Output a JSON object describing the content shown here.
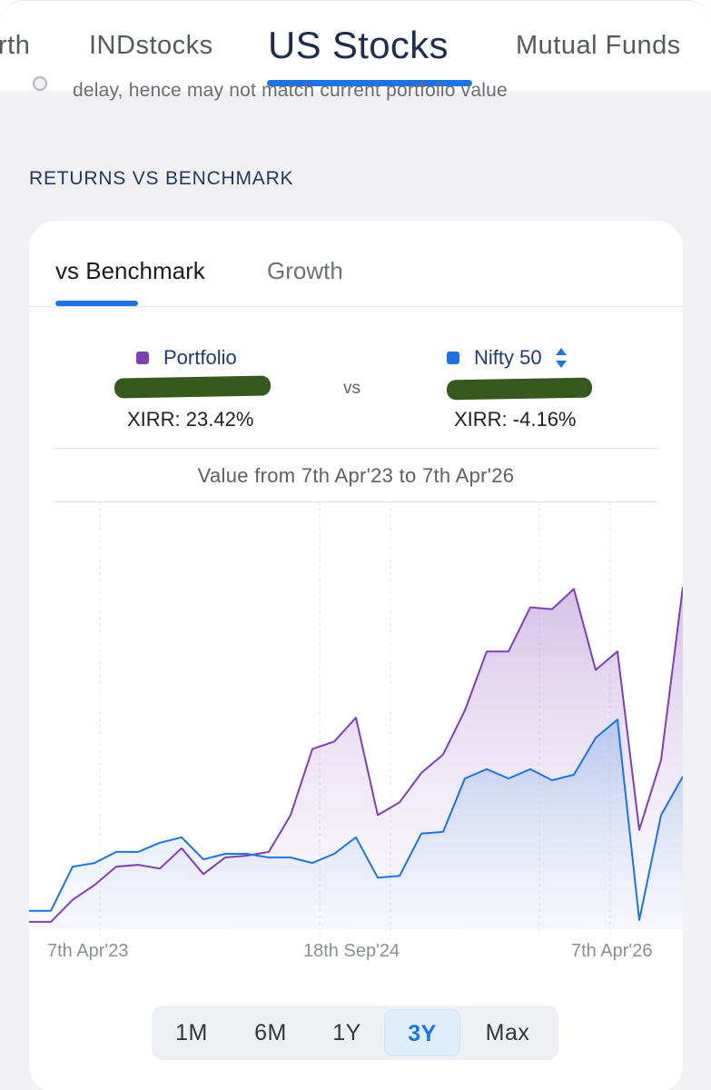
{
  "top_tabs": [
    {
      "label": "rth"
    },
    {
      "label": "INDstocks"
    },
    {
      "label": "US Stocks",
      "active": true
    },
    {
      "label": "Mutual Funds"
    }
  ],
  "note_text": "delay, hence may not match current portfolio value",
  "section_title": "RETURNS VS BENCHMARK",
  "card_tabs": [
    {
      "label": "vs Benchmark",
      "active": true
    },
    {
      "label": "Growth"
    }
  ],
  "comparison": {
    "left": {
      "name": "Portfolio",
      "color": "#7e3fb5",
      "xirr": "XIRR: 23.42%"
    },
    "vs_label": "vs",
    "right": {
      "name": "Nifty 50",
      "color": "#1a73e8",
      "xirr": "XIRR: -4.16%"
    }
  },
  "value_range": "Value from 7th Apr'23 to 7th Apr'26",
  "chart_data": {
    "type": "area",
    "title": "Value from 7th Apr'23 to 7th Apr'26",
    "x_tick_labels": [
      "7th Apr'23",
      "18th Sep'24",
      "7th Apr'26"
    ],
    "y_axis": "unlabeled (relative value)",
    "ylim": [
      0,
      100
    ],
    "series": [
      {
        "name": "Portfolio",
        "color": "#7e3fb5",
        "values": [
          2,
          2,
          8,
          12,
          17,
          17.5,
          16.5,
          22,
          15,
          19.5,
          20,
          21,
          31,
          49,
          51,
          57.5,
          31,
          34.5,
          42.5,
          47.5,
          59.5,
          75.5,
          75.5,
          87.5,
          87,
          92.5,
          70.5,
          75.5,
          27,
          46,
          93
        ]
      },
      {
        "name": "Nifty 50",
        "color": "#1a73e8",
        "values": [
          5,
          5,
          17,
          18,
          21,
          21,
          23.5,
          25,
          19,
          20.5,
          20.5,
          19.5,
          19.5,
          18,
          20.5,
          25,
          14,
          14.5,
          26,
          26.5,
          41,
          43.5,
          41,
          43.5,
          40.5,
          42,
          52,
          57,
          2.5,
          31,
          41.5
        ]
      }
    ],
    "range_options": [
      "1M",
      "6M",
      "1Y",
      "3Y",
      "Max"
    ],
    "selected_range": "3Y"
  }
}
